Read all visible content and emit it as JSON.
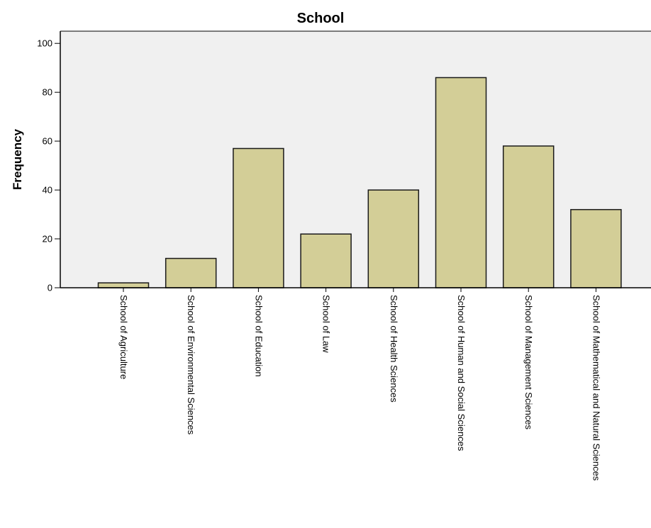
{
  "chart_data": {
    "type": "bar",
    "title": "School",
    "xlabel": "",
    "ylabel": "Frequency",
    "categories": [
      "School of Agriculture",
      "School of Environmental Sciences",
      "School of Education",
      "School of Law",
      "School of Health Sciences",
      "School of Human and Social Sciences",
      "School of Management Sciences",
      "School of Mathematical and Natural Sciences"
    ],
    "values": [
      2,
      12,
      57,
      22,
      40,
      86,
      58,
      32
    ],
    "ylim": [
      0,
      105
    ],
    "yticks": [
      0,
      20,
      40,
      60,
      80,
      100
    ],
    "grid": false,
    "colors": {
      "plot_background": "#f0f0f0",
      "bar_fill": "#d3ce97",
      "bar_stroke": "#1a1a1a"
    }
  }
}
